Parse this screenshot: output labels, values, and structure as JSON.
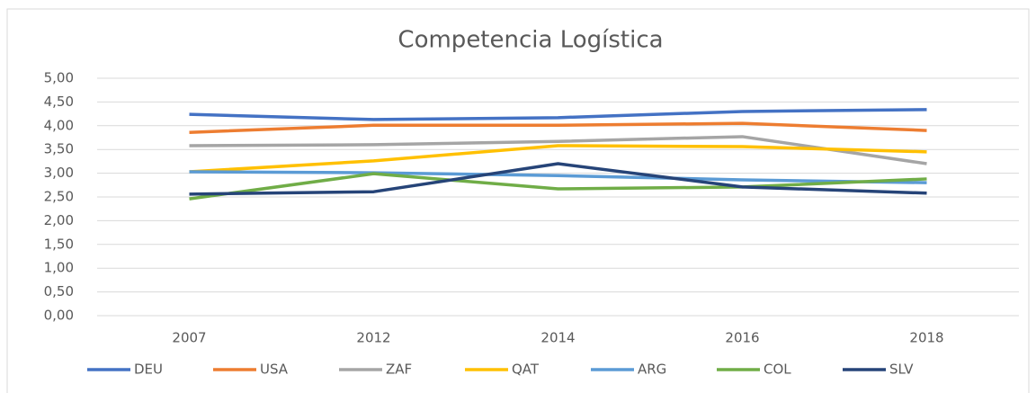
{
  "chart_data": {
    "type": "line",
    "title": "Competencia Logística",
    "categories": [
      "2007",
      "2012",
      "2014",
      "2016",
      "2018"
    ],
    "series": [
      {
        "name": "DEU",
        "color": "#4472c4",
        "values": [
          4.24,
          4.13,
          4.17,
          4.3,
          4.34
        ]
      },
      {
        "name": "USA",
        "color": "#ed7d31",
        "values": [
          3.86,
          4.01,
          4.01,
          4.05,
          3.9
        ]
      },
      {
        "name": "ZAF",
        "color": "#a5a5a5",
        "values": [
          3.58,
          3.6,
          3.67,
          3.77,
          3.2
        ]
      },
      {
        "name": "QAT",
        "color": "#ffc000",
        "values": [
          3.03,
          3.26,
          3.58,
          3.56,
          3.45
        ]
      },
      {
        "name": "ARG",
        "color": "#5b9bd5",
        "values": [
          3.03,
          3.01,
          2.95,
          2.86,
          2.8
        ]
      },
      {
        "name": "COL",
        "color": "#70ad47",
        "values": [
          2.46,
          2.99,
          2.67,
          2.71,
          2.88
        ]
      },
      {
        "name": "SLV",
        "color": "#264478",
        "values": [
          2.56,
          2.61,
          3.2,
          2.71,
          2.58
        ]
      }
    ],
    "ylim": [
      0,
      5
    ],
    "yticks": [
      {
        "value": 0,
        "label": "0,00"
      },
      {
        "value": 0.5,
        "label": "0,50"
      },
      {
        "value": 1,
        "label": "1,00"
      },
      {
        "value": 1.5,
        "label": "1,50"
      },
      {
        "value": 2,
        "label": "2,00"
      },
      {
        "value": 2.5,
        "label": "2,50"
      },
      {
        "value": 3,
        "label": "3,00"
      },
      {
        "value": 3.5,
        "label": "3,50"
      },
      {
        "value": 4,
        "label": "4,00"
      },
      {
        "value": 4.5,
        "label": "4,50"
      },
      {
        "value": 5,
        "label": "5,00"
      }
    ],
    "grid": true,
    "legend": "bottom"
  }
}
